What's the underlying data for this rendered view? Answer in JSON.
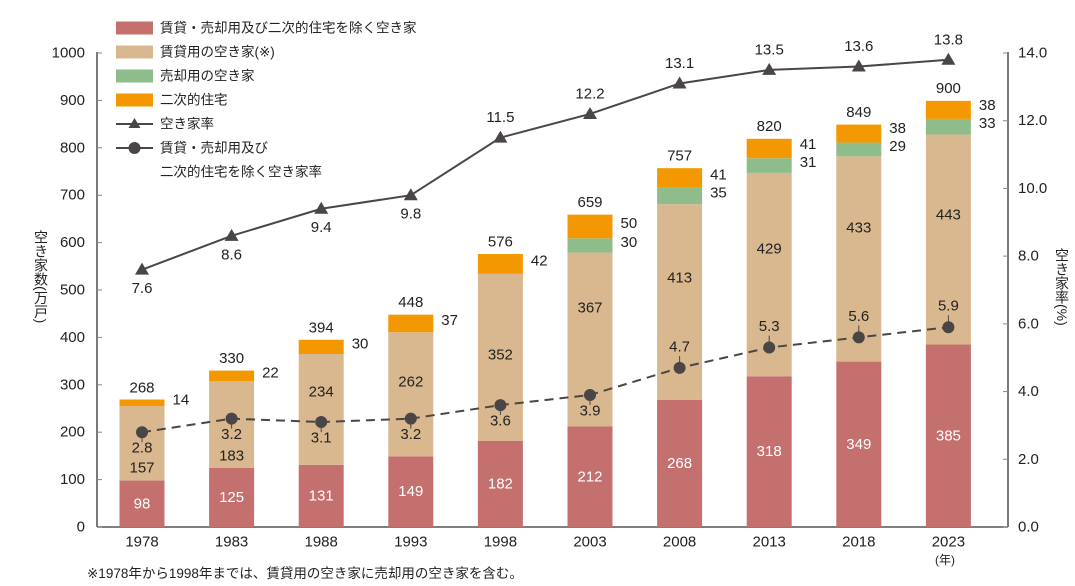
{
  "chart_data": {
    "type": "bar",
    "variant": "stacked bar with two line series on secondary axis",
    "categories": [
      "1978",
      "1983",
      "1988",
      "1993",
      "1998",
      "2003",
      "2008",
      "2013",
      "2018",
      "2023"
    ],
    "x_unit_label": "(年)",
    "series": [
      {
        "name": "賃貸・売却用及び二次的住宅を除く空き家",
        "type": "bar",
        "axis": "left",
        "color": "#C4706F",
        "values": [
          98,
          125,
          131,
          149,
          182,
          212,
          268,
          318,
          349,
          385
        ]
      },
      {
        "name": "賃貸用の空き家(※)",
        "type": "bar",
        "axis": "left",
        "color": "#D9B88F",
        "values": [
          157,
          183,
          234,
          262,
          352,
          367,
          413,
          429,
          433,
          443
        ]
      },
      {
        "name": "売却用の空き家",
        "type": "bar",
        "axis": "left",
        "color": "#8FBC8B",
        "values": [
          null,
          null,
          null,
          null,
          null,
          30,
          35,
          31,
          29,
          33
        ]
      },
      {
        "name": "二次的住宅",
        "type": "bar",
        "axis": "left",
        "color": "#F39800",
        "values": [
          14,
          22,
          30,
          37,
          42,
          50,
          41,
          41,
          38,
          38
        ]
      },
      {
        "name": "空き家率",
        "type": "line",
        "axis": "right",
        "marker": "triangle",
        "color": "#4A4645",
        "values": [
          7.6,
          8.6,
          9.4,
          9.8,
          11.5,
          12.2,
          13.1,
          13.5,
          13.6,
          13.8
        ]
      },
      {
        "name": "賃貸・売却用及び二次的住宅を除く空き家率",
        "type": "line",
        "axis": "right",
        "marker": "circle",
        "dashed": true,
        "color": "#4A4645",
        "values": [
          2.8,
          3.2,
          3.1,
          3.2,
          3.6,
          3.9,
          4.7,
          5.3,
          5.6,
          5.9
        ]
      }
    ],
    "totals": [
      268,
      330,
      394,
      448,
      576,
      659,
      757,
      820,
      849,
      900
    ],
    "ylabel_left": "空き家数(万戸)",
    "ylabel_right": "空き家率(%)",
    "ylim_left": [
      0,
      1000
    ],
    "ylim_right": [
      0,
      14
    ],
    "yticks_left": [
      "0",
      "100",
      "200",
      "300",
      "400",
      "500",
      "600",
      "700",
      "800",
      "900",
      "1000"
    ],
    "yticks_right": [
      "0.0",
      "2.0",
      "4.0",
      "6.0",
      "8.0",
      "10.0",
      "12.0",
      "14.0"
    ],
    "grid": false,
    "legend_position": "top-left",
    "legend_label_lines_last": [
      "賃貸・売却用及び",
      "二次的住宅を除く空き家率"
    ],
    "footnote": "※1978年から1998年までは、賃貸用の空き家に売却用の空き家を含む。"
  }
}
